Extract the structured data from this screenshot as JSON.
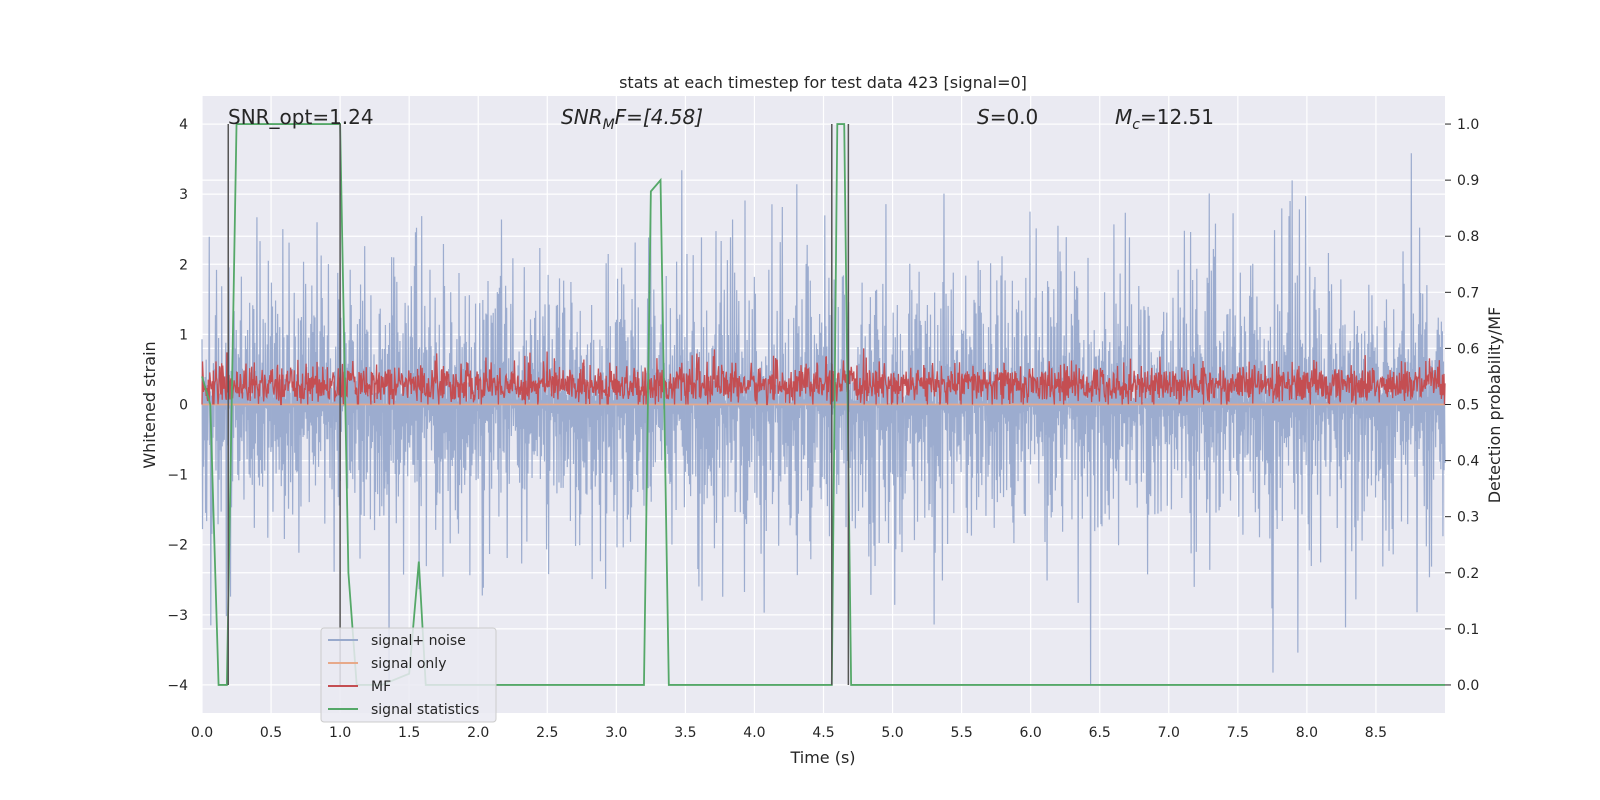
{
  "chart_data": {
    "type": "line",
    "title": "stats at each timestep for test data 423 [signal=0]",
    "xlabel": "Time (s)",
    "ylabel": "Whitened strain",
    "ylabel_right": "Detection probability/MF",
    "xlim": [
      0.0,
      9.0
    ],
    "ylim": [
      -4.4,
      4.4
    ],
    "ylim_right": [
      -0.05,
      1.05
    ],
    "x_ticks": [
      0.0,
      0.5,
      1.0,
      1.5,
      2.0,
      2.5,
      3.0,
      3.5,
      4.0,
      4.5,
      5.0,
      5.5,
      6.0,
      6.5,
      7.0,
      7.5,
      8.0,
      8.5
    ],
    "x_tick_labels": [
      "0.0",
      "0.5",
      "1.0",
      "1.5",
      "2.0",
      "2.5",
      "3.0",
      "3.5",
      "4.0",
      "4.5",
      "5.0",
      "5.5",
      "6.0",
      "6.5",
      "7.0",
      "7.5",
      "8.0",
      "8.5"
    ],
    "y_ticks": [
      -4,
      -3,
      -2,
      -1,
      0,
      1,
      2,
      3,
      4
    ],
    "y_tick_labels": [
      "−4",
      "−3",
      "−2",
      "−1",
      "0",
      "1",
      "2",
      "3",
      "4"
    ],
    "y_ticks_right": [
      0.0,
      0.1,
      0.2,
      0.3,
      0.4,
      0.5,
      0.6,
      0.7,
      0.8,
      0.9,
      1.0
    ],
    "y_tick_labels_right": [
      "0.0",
      "0.1",
      "0.2",
      "0.3",
      "0.4",
      "0.5",
      "0.6",
      "0.7",
      "0.8",
      "0.9",
      "1.0"
    ],
    "grid": true,
    "legend_position": "lower-left",
    "annotations": {
      "snr_opt": "SNR_opt=1.24",
      "snr_mf_base": "SNR",
      "snr_mf_sub": "M",
      "snr_mf_rest": "F=[4.58]",
      "s_base": "S",
      "s_rest": "=0.0",
      "mc_base": "M",
      "mc_sub": "c",
      "mc_rest": "=12.51"
    },
    "series": [
      {
        "name": "signal+ noise",
        "color": "#98a9cc",
        "kind": "noise",
        "axis": "left",
        "x_range": [
          0.0,
          9.0
        ],
        "amplitude_range": [
          -4.0,
          4.0
        ]
      },
      {
        "name": "signal only",
        "color": "#e7a98a",
        "kind": "line",
        "axis": "left",
        "x": [
          0.0,
          9.0
        ],
        "y": [
          0.0,
          0.0
        ]
      },
      {
        "name": "MF",
        "color": "#c44e52",
        "kind": "noise",
        "axis": "left",
        "x_range": [
          0.0,
          9.0
        ],
        "amplitude_range": [
          0.0,
          0.8
        ]
      },
      {
        "name": "signal statistics",
        "color": "#55a868",
        "kind": "line",
        "axis": "right",
        "x": [
          0.0,
          0.06,
          0.12,
          0.18,
          0.25,
          1.0,
          1.06,
          1.12,
          1.3,
          1.5,
          1.57,
          1.62,
          1.7,
          3.12,
          3.2,
          3.25,
          3.32,
          3.38,
          4.56,
          4.6,
          4.65,
          4.7,
          4.8,
          9.0
        ],
        "y": [
          0.55,
          0.5,
          0.0,
          0.0,
          1.0,
          1.0,
          0.2,
          0.0,
          0.0,
          0.02,
          0.22,
          0.0,
          0.0,
          0.0,
          0.0,
          0.88,
          0.9,
          0.0,
          0.0,
          1.0,
          1.0,
          0.0,
          0.0,
          0.0
        ]
      }
    ],
    "vertical_lines": [
      {
        "x": 0.19,
        "color": "#555555"
      },
      {
        "x": 1.0,
        "color": "#555555"
      },
      {
        "x": 4.56,
        "color": "#555555"
      },
      {
        "x": 4.68,
        "color": "#555555"
      }
    ]
  }
}
